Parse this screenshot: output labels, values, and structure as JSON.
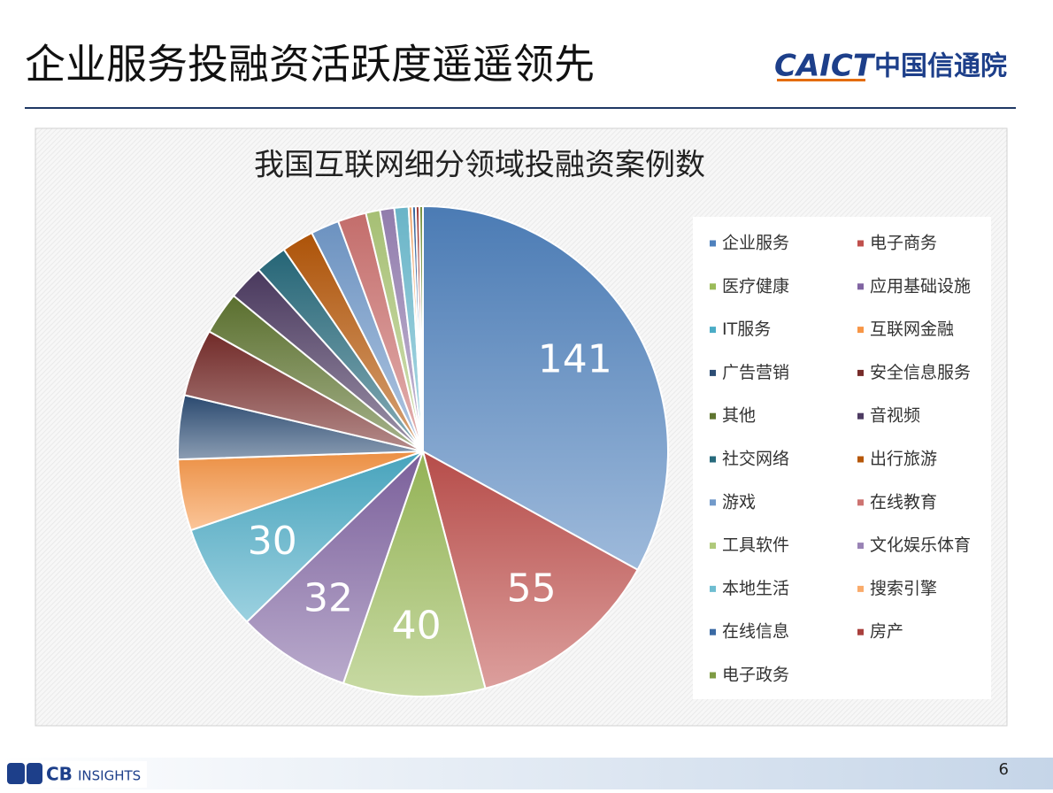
{
  "header": {
    "title": "企业服务投融资活跃度遥遥领先",
    "logo_en": "CAICT",
    "logo_cn": "中国信通院"
  },
  "footer": {
    "logo_cb": "CB",
    "logo_insights": "INSIGHTS",
    "page_number": "6"
  },
  "chart_data": {
    "type": "pie",
    "title": "我国互联网细分领域投融资案例数",
    "categories": [
      "企业服务",
      "电子商务",
      "医疗健康",
      "应用基础设施",
      "IT服务",
      "互联网金融",
      "广告营销",
      "安全信息服务",
      "其他",
      "音视频",
      "社交网络",
      "出行旅游",
      "游戏",
      "在线教育",
      "工具软件",
      "文化娱乐体育",
      "本地生活",
      "搜索引擎",
      "在线信息",
      "房产",
      "电子政务"
    ],
    "values": [
      141,
      55,
      40,
      32,
      30,
      20,
      18,
      19,
      12,
      10,
      9,
      9,
      8,
      8,
      4,
      4,
      4,
      1,
      1,
      1,
      1
    ],
    "value_labels": [
      "141",
      "55",
      "40",
      "32",
      "30",
      null,
      null,
      null,
      null,
      null,
      null,
      null,
      null,
      null,
      null,
      null,
      null,
      null,
      null,
      null,
      null
    ],
    "colors": [
      "#4f81bd",
      "#c0504d",
      "#9bbb59",
      "#8064a2",
      "#4bacc6",
      "#f79646",
      "#2c4d75",
      "#772c2a",
      "#5f7530",
      "#4d3b62",
      "#276a7c",
      "#b65708",
      "#729aca",
      "#cd7371",
      "#afc97a",
      "#9983b5",
      "#6fbdd1",
      "#f9ab6b",
      "#3a6aa4",
      "#a9403d",
      "#7e9b44"
    ],
    "legend": "right"
  }
}
